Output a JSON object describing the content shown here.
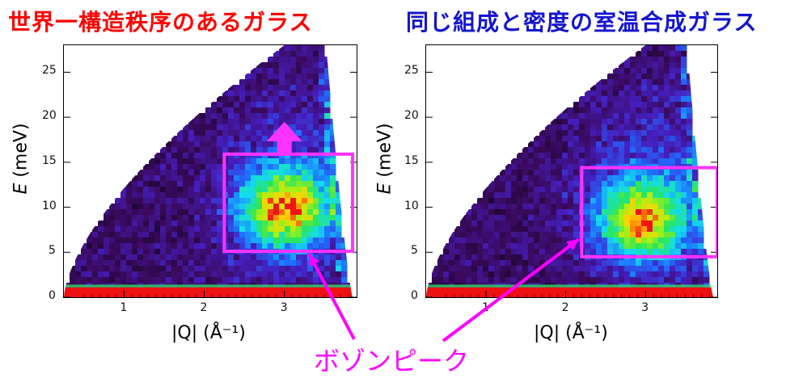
{
  "titles": {
    "left": "世界一構造秩序のあるガラス",
    "right": "同じ組成と密度の室温合成ガラス"
  },
  "colors": {
    "left_title": "#ff0000",
    "right_title": "#1414d2",
    "highlight_box": "#ff33ff",
    "arrow": "#ff33ff",
    "callout": "#ff00ff",
    "floor_band": "#ee1111",
    "bg_dark": "#3a0a5e"
  },
  "callout": {
    "text": "ボゾンピーク"
  },
  "chart_data": [
    {
      "type": "heatmap",
      "xlabel": "|Q| (Å⁻¹)",
      "ylabel": "E (meV)",
      "xlim": [
        0.25,
        3.9
      ],
      "ylim": [
        0,
        28
      ],
      "xticks": [
        "1",
        "2",
        "3"
      ],
      "yticks": [
        "0",
        "5",
        "10",
        "15",
        "20",
        "25"
      ],
      "highlight_box": {
        "q_range": [
          2.25,
          3.85
        ],
        "e_range": [
          5.1,
          15.9
        ]
      },
      "hot_spot": {
        "q": 3.0,
        "e": 9.8
      },
      "arrow_direction": "up"
    },
    {
      "type": "heatmap",
      "xlabel": "|Q| (Å⁻¹)",
      "ylabel": "E (meV)",
      "xlim": [
        0.25,
        3.9
      ],
      "ylim": [
        0,
        28
      ],
      "xticks": [
        "1",
        "2",
        "3"
      ],
      "yticks": [
        "0",
        "5",
        "10",
        "15",
        "20",
        "25"
      ],
      "highlight_box": {
        "q_range": [
          2.2,
          3.9
        ],
        "e_range": [
          4.5,
          14.4
        ]
      },
      "hot_spot": {
        "q": 2.95,
        "e": 8.4
      }
    }
  ]
}
